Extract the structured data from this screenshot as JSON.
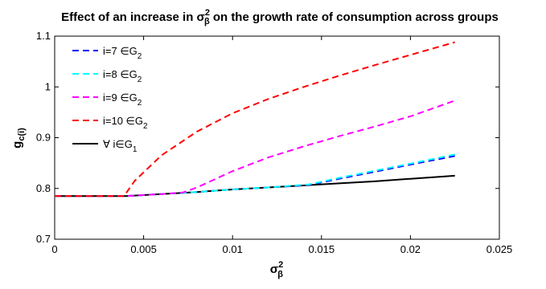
{
  "chart_data": {
    "type": "line",
    "title": {
      "prefix": "Effect of an increase in σ",
      "sup": "2",
      "sub": "β",
      "suffix": " on the growth rate of consumption across groups"
    },
    "xlabel": {
      "base": "σ",
      "sup": "2",
      "sub": "β"
    },
    "ylabel": {
      "base": "g",
      "sub": "c(i)"
    },
    "xlim": [
      0,
      0.025
    ],
    "ylim": [
      0.7,
      1.1
    ],
    "xticks": [
      0,
      0.005,
      0.01,
      0.015,
      0.02,
      0.025
    ],
    "xtick_labels": [
      "0",
      "0.005",
      "0.01",
      "0.015",
      "0.02",
      "0.025"
    ],
    "yticks": [
      0.7,
      0.8,
      0.9,
      1.0,
      1.1
    ],
    "ytick_labels": [
      "0.7",
      "0.8",
      "0.9",
      "1",
      "1.1"
    ],
    "grid": false,
    "legend_position": "top-left",
    "series": [
      {
        "name": {
          "base": "i=7 ∈G",
          "sub": "2"
        },
        "color": "#0000ff",
        "style": "dashed",
        "x": [
          0,
          0.004,
          0.006,
          0.008,
          0.01,
          0.012,
          0.0143,
          0.016,
          0.018,
          0.02,
          0.0225
        ],
        "y": [
          0.785,
          0.785,
          0.789,
          0.793,
          0.798,
          0.802,
          0.807,
          0.819,
          0.833,
          0.847,
          0.864
        ]
      },
      {
        "name": {
          "base": "i=8 ∈G",
          "sub": "2"
        },
        "color": "#00ffff",
        "style": "dashed",
        "x": [
          0,
          0.004,
          0.006,
          0.008,
          0.01,
          0.012,
          0.0143,
          0.016,
          0.018,
          0.02,
          0.0225
        ],
        "y": [
          0.785,
          0.785,
          0.789,
          0.793,
          0.798,
          0.802,
          0.808,
          0.821,
          0.835,
          0.849,
          0.867
        ]
      },
      {
        "name": {
          "base": "i=9 ∈G",
          "sub": "2"
        },
        "color": "#ff00ff",
        "style": "dashed",
        "x": [
          0,
          0.004,
          0.006,
          0.0072,
          0.008,
          0.01,
          0.012,
          0.014,
          0.016,
          0.018,
          0.02,
          0.0225
        ],
        "y": [
          0.785,
          0.785,
          0.789,
          0.792,
          0.802,
          0.834,
          0.861,
          0.883,
          0.903,
          0.922,
          0.942,
          0.973
        ]
      },
      {
        "name": {
          "base": "i=10 ∈G",
          "sub": "2"
        },
        "color": "#ff0000",
        "style": "dashed",
        "x": [
          0,
          0.0039,
          0.0045,
          0.006,
          0.008,
          0.01,
          0.012,
          0.014,
          0.016,
          0.018,
          0.02,
          0.0225
        ],
        "y": [
          0.785,
          0.785,
          0.815,
          0.865,
          0.912,
          0.948,
          0.976,
          1.0,
          1.022,
          1.043,
          1.063,
          1.088
        ]
      },
      {
        "name": {
          "base": "∀ i∈G",
          "sub": "1"
        },
        "color": "#000000",
        "style": "solid",
        "x": [
          0,
          0.004,
          0.006,
          0.008,
          0.01,
          0.012,
          0.014,
          0.016,
          0.018,
          0.02,
          0.0225
        ],
        "y": [
          0.785,
          0.785,
          0.789,
          0.793,
          0.798,
          0.802,
          0.806,
          0.81,
          0.814,
          0.819,
          0.825
        ]
      }
    ]
  }
}
